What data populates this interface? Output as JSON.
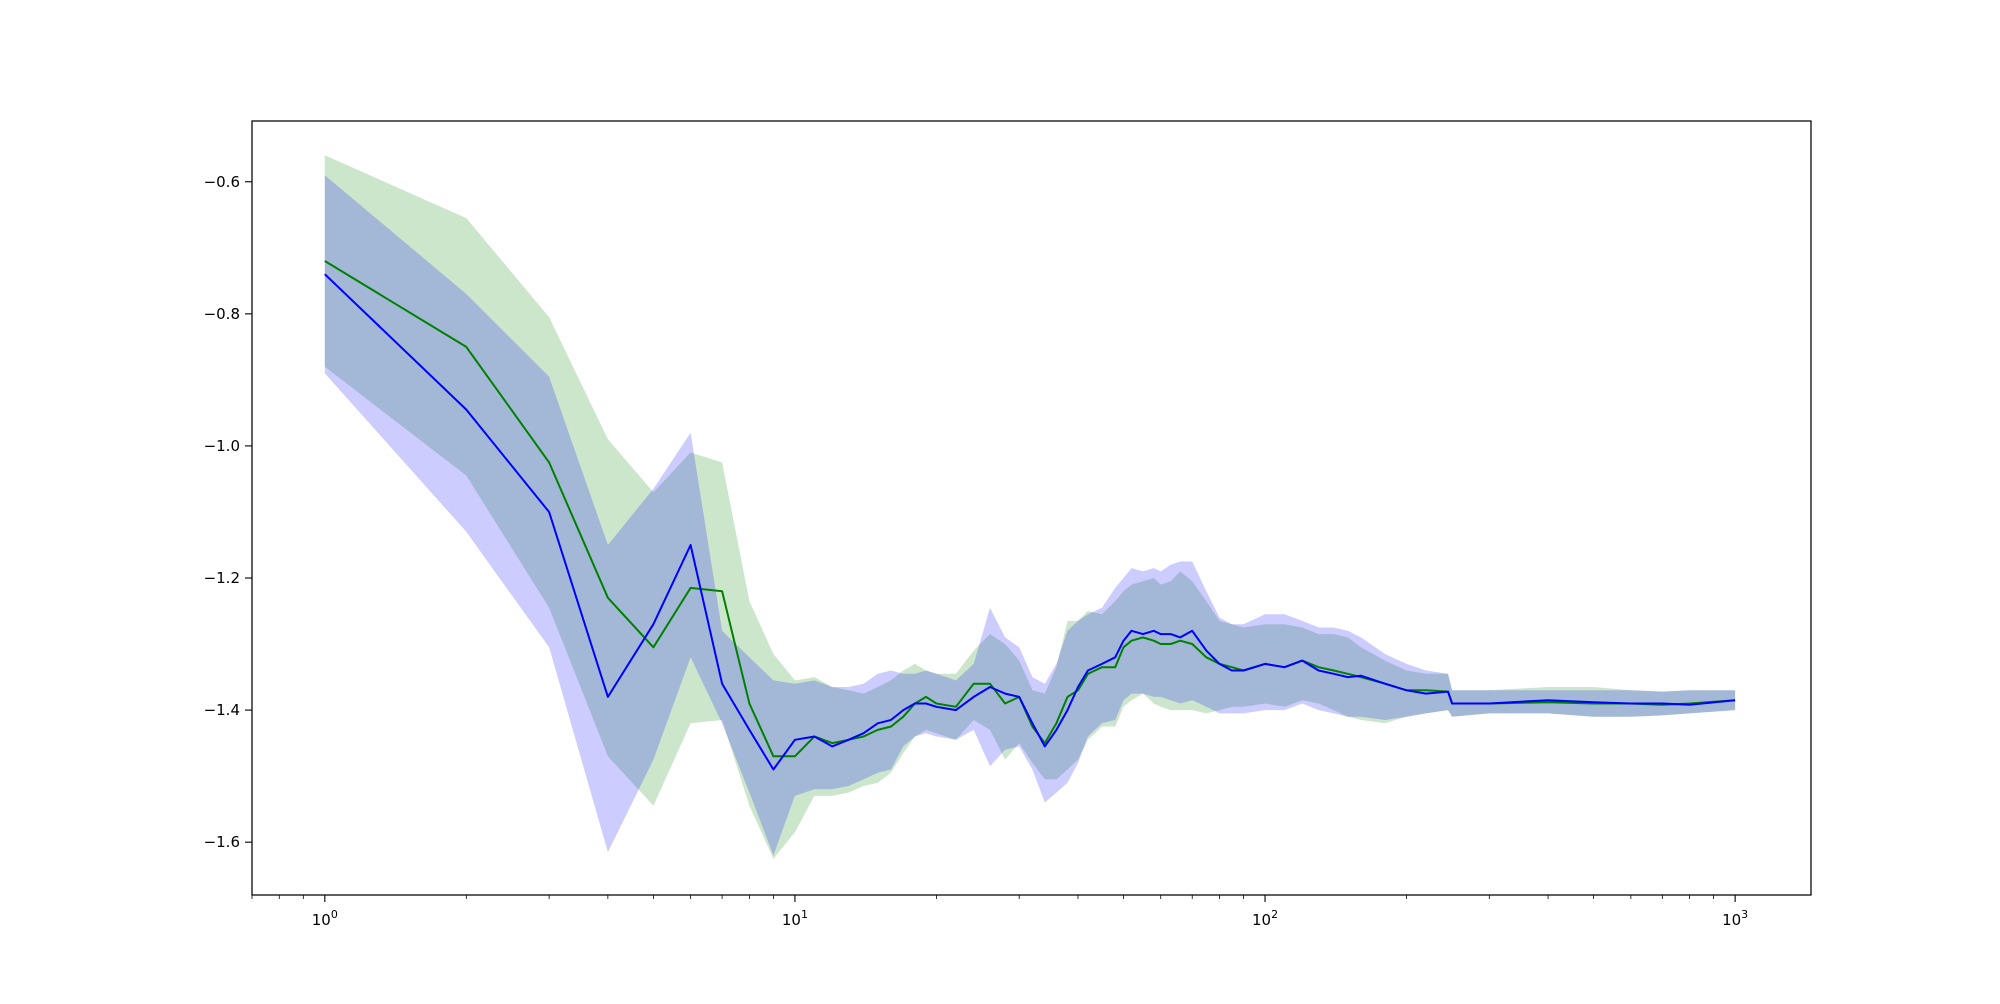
{
  "chart_data": {
    "type": "line",
    "xscale": "log",
    "xlim": [
      0.7,
      1450
    ],
    "ylim": [
      -1.68,
      -0.508
    ],
    "grid": false,
    "legend": "none",
    "title": "",
    "xlabel": "",
    "ylabel": "",
    "x_ticks": [
      {
        "value": 1,
        "base": "10",
        "exp": "0"
      },
      {
        "value": 10,
        "base": "10",
        "exp": "1"
      },
      {
        "value": 100,
        "base": "10",
        "exp": "2"
      },
      {
        "value": 1000,
        "base": "10",
        "exp": "3"
      }
    ],
    "y_ticks": [
      {
        "value": -0.6,
        "label": "−0.6"
      },
      {
        "value": -0.8,
        "label": "−0.8"
      },
      {
        "value": -1.0,
        "label": "−1.0"
      },
      {
        "value": -1.2,
        "label": "−1.2"
      },
      {
        "value": -1.4,
        "label": "−1.4"
      },
      {
        "value": -1.6,
        "label": "−1.6"
      }
    ],
    "series": [
      {
        "color": "#008000",
        "band_color": "#008000",
        "band_opacity": 0.2,
        "x": [
          1,
          2,
          3,
          4,
          5,
          6,
          7,
          8,
          9,
          10,
          11,
          12,
          13,
          14,
          15,
          16,
          17,
          18,
          19,
          20,
          22,
          24,
          26,
          28,
          30,
          32,
          34,
          36,
          38,
          40,
          42,
          45,
          48,
          50,
          52,
          55,
          58,
          60,
          63,
          66,
          70,
          75,
          80,
          85,
          90,
          100,
          110,
          120,
          130,
          140,
          150,
          160,
          180,
          200,
          220,
          245,
          250,
          300,
          400,
          500,
          600,
          700,
          800,
          1000
        ],
        "y": [
          -0.72,
          -0.85,
          -1.025,
          -1.23,
          -1.305,
          -1.215,
          -1.22,
          -1.39,
          -1.47,
          -1.47,
          -1.44,
          -1.45,
          -1.445,
          -1.44,
          -1.43,
          -1.425,
          -1.41,
          -1.39,
          -1.38,
          -1.39,
          -1.395,
          -1.36,
          -1.36,
          -1.39,
          -1.38,
          -1.425,
          -1.45,
          -1.42,
          -1.38,
          -1.37,
          -1.345,
          -1.335,
          -1.335,
          -1.305,
          -1.295,
          -1.29,
          -1.295,
          -1.3,
          -1.3,
          -1.295,
          -1.3,
          -1.32,
          -1.33,
          -1.335,
          -1.34,
          -1.33,
          -1.335,
          -1.325,
          -1.335,
          -1.34,
          -1.345,
          -1.35,
          -1.36,
          -1.37,
          -1.37,
          -1.372,
          -1.39,
          -1.39,
          -1.388,
          -1.39,
          -1.39,
          -1.392,
          -1.39,
          -1.385
        ],
        "upper": [
          -0.56,
          -0.655,
          -0.805,
          -0.99,
          -1.07,
          -1.01,
          -1.025,
          -1.235,
          -1.315,
          -1.355,
          -1.35,
          -1.365,
          -1.37,
          -1.375,
          -1.365,
          -1.355,
          -1.34,
          -1.33,
          -1.34,
          -1.345,
          -1.345,
          -1.31,
          -1.285,
          -1.3,
          -1.325,
          -1.37,
          -1.375,
          -1.335,
          -1.265,
          -1.265,
          -1.25,
          -1.255,
          -1.235,
          -1.22,
          -1.21,
          -1.205,
          -1.2,
          -1.21,
          -1.205,
          -1.19,
          -1.205,
          -1.235,
          -1.265,
          -1.27,
          -1.275,
          -1.27,
          -1.27,
          -1.275,
          -1.285,
          -1.285,
          -1.29,
          -1.305,
          -1.325,
          -1.34,
          -1.345,
          -1.345,
          -1.37,
          -1.37,
          -1.365,
          -1.365,
          -1.37,
          -1.372,
          -1.37,
          -1.37
        ],
        "lower": [
          -0.88,
          -1.045,
          -1.245,
          -1.47,
          -1.545,
          -1.42,
          -1.415,
          -1.545,
          -1.625,
          -1.585,
          -1.53,
          -1.53,
          -1.525,
          -1.515,
          -1.51,
          -1.495,
          -1.465,
          -1.44,
          -1.43,
          -1.435,
          -1.445,
          -1.415,
          -1.43,
          -1.475,
          -1.45,
          -1.48,
          -1.505,
          -1.505,
          -1.49,
          -1.475,
          -1.445,
          -1.425,
          -1.425,
          -1.395,
          -1.385,
          -1.375,
          -1.39,
          -1.395,
          -1.4,
          -1.4,
          -1.4,
          -1.405,
          -1.4,
          -1.395,
          -1.395,
          -1.39,
          -1.395,
          -1.385,
          -1.39,
          -1.4,
          -1.41,
          -1.415,
          -1.42,
          -1.41,
          -1.405,
          -1.4,
          -1.41,
          -1.405,
          -1.405,
          -1.41,
          -1.41,
          -1.408,
          -1.405,
          -1.4
        ]
      },
      {
        "color": "#0000ff",
        "band_color": "#0000ff",
        "band_opacity": 0.2,
        "x": [
          1,
          2,
          3,
          4,
          5,
          6,
          7,
          8,
          9,
          10,
          11,
          12,
          13,
          14,
          15,
          16,
          17,
          18,
          19,
          20,
          22,
          24,
          26,
          28,
          30,
          32,
          34,
          36,
          38,
          40,
          42,
          45,
          48,
          50,
          52,
          55,
          58,
          60,
          63,
          66,
          70,
          75,
          80,
          85,
          90,
          100,
          110,
          120,
          130,
          140,
          150,
          160,
          180,
          200,
          220,
          245,
          250,
          300,
          400,
          500,
          600,
          700,
          800,
          1000
        ],
        "y": [
          -0.74,
          -0.945,
          -1.1,
          -1.38,
          -1.27,
          -1.15,
          -1.36,
          -1.43,
          -1.49,
          -1.445,
          -1.44,
          -1.455,
          -1.445,
          -1.435,
          -1.42,
          -1.415,
          -1.4,
          -1.39,
          -1.39,
          -1.395,
          -1.4,
          -1.38,
          -1.365,
          -1.375,
          -1.38,
          -1.42,
          -1.455,
          -1.43,
          -1.4,
          -1.365,
          -1.34,
          -1.33,
          -1.32,
          -1.295,
          -1.28,
          -1.285,
          -1.28,
          -1.285,
          -1.285,
          -1.29,
          -1.28,
          -1.31,
          -1.33,
          -1.34,
          -1.34,
          -1.33,
          -1.335,
          -1.325,
          -1.34,
          -1.345,
          -1.35,
          -1.348,
          -1.36,
          -1.37,
          -1.375,
          -1.372,
          -1.39,
          -1.39,
          -1.385,
          -1.388,
          -1.39,
          -1.39,
          -1.392,
          -1.385
        ],
        "upper": [
          -0.59,
          -0.77,
          -0.895,
          -1.15,
          -1.065,
          -0.98,
          -1.28,
          -1.32,
          -1.355,
          -1.36,
          -1.355,
          -1.365,
          -1.365,
          -1.36,
          -1.345,
          -1.34,
          -1.345,
          -1.345,
          -1.34,
          -1.345,
          -1.355,
          -1.33,
          -1.245,
          -1.29,
          -1.305,
          -1.35,
          -1.36,
          -1.33,
          -1.28,
          -1.265,
          -1.255,
          -1.245,
          -1.215,
          -1.2,
          -1.185,
          -1.19,
          -1.185,
          -1.19,
          -1.18,
          -1.175,
          -1.175,
          -1.22,
          -1.26,
          -1.27,
          -1.27,
          -1.255,
          -1.255,
          -1.265,
          -1.275,
          -1.275,
          -1.28,
          -1.29,
          -1.315,
          -1.33,
          -1.34,
          -1.345,
          -1.37,
          -1.37,
          -1.37,
          -1.37,
          -1.37,
          -1.372,
          -1.37,
          -1.37
        ],
        "lower": [
          -0.89,
          -1.13,
          -1.305,
          -1.615,
          -1.475,
          -1.32,
          -1.42,
          -1.525,
          -1.62,
          -1.53,
          -1.52,
          -1.52,
          -1.515,
          -1.505,
          -1.495,
          -1.49,
          -1.455,
          -1.44,
          -1.435,
          -1.44,
          -1.445,
          -1.43,
          -1.485,
          -1.46,
          -1.455,
          -1.49,
          -1.54,
          -1.525,
          -1.51,
          -1.48,
          -1.44,
          -1.42,
          -1.415,
          -1.385,
          -1.375,
          -1.375,
          -1.38,
          -1.38,
          -1.385,
          -1.39,
          -1.385,
          -1.395,
          -1.405,
          -1.405,
          -1.405,
          -1.4,
          -1.4,
          -1.39,
          -1.4,
          -1.405,
          -1.41,
          -1.41,
          -1.415,
          -1.41,
          -1.405,
          -1.4,
          -1.41,
          -1.405,
          -1.405,
          -1.41,
          -1.41,
          -1.408,
          -1.405,
          -1.4
        ]
      }
    ]
  }
}
